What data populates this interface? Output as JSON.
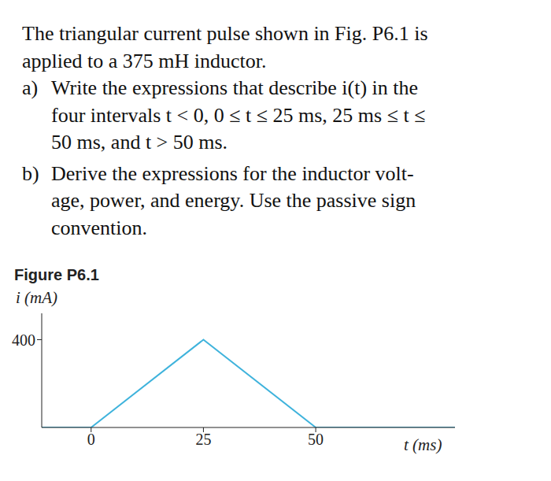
{
  "problem": {
    "intro": [
      "The triangular current pulse shown in Fig. P6.1 is",
      "applied to a 375 mH inductor."
    ],
    "parts": [
      {
        "label": "a)",
        "lines": [
          "Write the expressions that describe i(t) in the",
          "four intervals t < 0, 0 ≤ t ≤ 25 ms, 25 ms ≤ t ≤",
          "50 ms, and t > 50 ms."
        ]
      },
      {
        "label": "b)",
        "lines": [
          "Derive the expressions for the inductor volt-",
          "age, power, and energy. Use the passive sign",
          "convention."
        ]
      }
    ]
  },
  "figure_title": "Figure P6.1",
  "chart_data": {
    "type": "line",
    "y_label": "i (mA)",
    "x_label": "t (ms)",
    "x": [
      -11,
      0,
      25,
      50,
      81
    ],
    "values": [
      0,
      0,
      400,
      0,
      0
    ],
    "color": "#3fb3dc",
    "xlim": [
      -11,
      81
    ],
    "xticks": [
      0,
      25,
      50
    ],
    "ylim": [
      0,
      520
    ],
    "yticks": [
      400
    ],
    "grid": false
  }
}
